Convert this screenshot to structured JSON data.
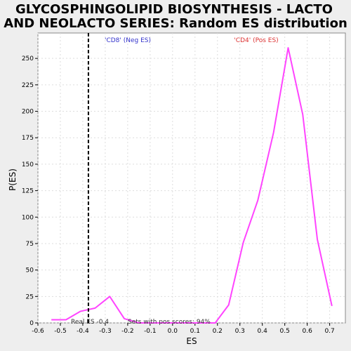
{
  "chart_data": {
    "type": "line",
    "title_lines": [
      "GLYCOSPHINGOLIPID BIOSYNTHESIS - LACTO",
      "AND NEOLACTO SERIES: Random ES distribution"
    ],
    "xlabel": "ES",
    "ylabel": "P(ES)",
    "xlim": [
      -0.6,
      0.77
    ],
    "ylim": [
      0,
      274
    ],
    "xticks": [
      -0.6,
      -0.5,
      -0.4,
      -0.3,
      -0.2,
      -0.1,
      0.0,
      0.1,
      0.2,
      0.3,
      0.4,
      0.5,
      0.6,
      0.7
    ],
    "xtick_labels": [
      "-0.6",
      "-0.5",
      "-0.4",
      "-0.3",
      "-0.2",
      "-0.1",
      "0.0",
      "0.1",
      "0.2",
      "0.3",
      "0.4",
      "0.5",
      "0.6",
      "0.7"
    ],
    "yticks": [
      0,
      25,
      50,
      75,
      100,
      125,
      150,
      175,
      200,
      225,
      250
    ],
    "ytick_labels": [
      "0",
      "25",
      "50",
      "75",
      "100",
      "125",
      "150",
      "175",
      "200",
      "225",
      "250"
    ],
    "grid": true,
    "series": [
      {
        "color": "#ff44ff",
        "x": [
          -0.54,
          -0.475,
          -0.41,
          -0.345,
          -0.28,
          -0.215,
          -0.15,
          -0.085,
          -0.02,
          0.045,
          0.11,
          0.19,
          0.25,
          0.315,
          0.38,
          0.45,
          0.515,
          0.58,
          0.645,
          0.71
        ],
        "y": [
          3,
          3,
          11,
          14,
          25,
          4,
          0,
          0,
          0,
          0,
          0,
          0,
          17,
          76,
          116,
          180,
          260,
          197,
          79,
          16
        ]
      }
    ],
    "real_es": {
      "value": -0.4,
      "label": "Real ES -0.4",
      "line_x": -0.375,
      "color": "#000000",
      "style": "dashed"
    },
    "neg_label": {
      "text": "'CD8' (Neg ES)",
      "color": "#3333cc"
    },
    "pos_label": {
      "text": "'CD4' (Pos ES)",
      "color": "#dd3333"
    },
    "footnote": "Sets with pos scores: 94%"
  }
}
